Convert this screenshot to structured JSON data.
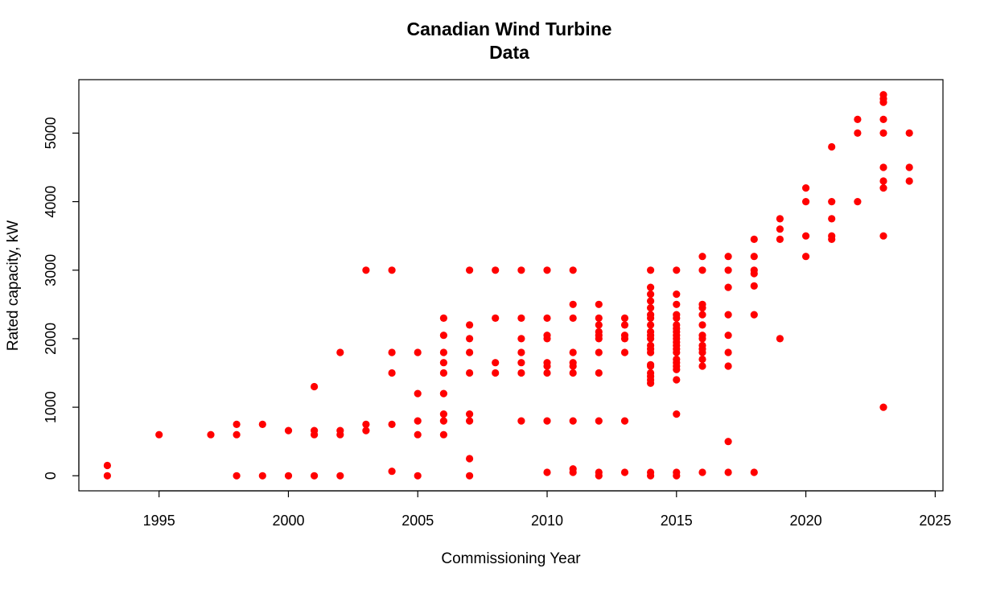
{
  "chart_data": {
    "type": "scatter",
    "title_lines": [
      "Canadian Wind Turbine",
      "Data"
    ],
    "xlabel": "Commissioning Year",
    "ylabel": "Rated capacity, kW",
    "xlim": [
      1991.9,
      2025.3
    ],
    "ylim": [
      -220,
      5780
    ],
    "x_ticks": [
      1995,
      2000,
      2005,
      2010,
      2015,
      2020,
      2025
    ],
    "y_ticks": [
      0,
      1000,
      2000,
      3000,
      4000,
      5000
    ],
    "grid": false,
    "legend": "none",
    "marker_color": "#ff0000",
    "points": [
      [
        1993,
        150
      ],
      [
        1993,
        0
      ],
      [
        1995,
        600
      ],
      [
        1997,
        600
      ],
      [
        1998,
        750
      ],
      [
        1998,
        600
      ],
      [
        1998,
        0
      ],
      [
        1999,
        750
      ],
      [
        1999,
        0
      ],
      [
        2000,
        660
      ],
      [
        2000,
        0
      ],
      [
        2001,
        1300
      ],
      [
        2001,
        660
      ],
      [
        2001,
        600
      ],
      [
        2001,
        0
      ],
      [
        2002,
        1800
      ],
      [
        2002,
        660
      ],
      [
        2002,
        600
      ],
      [
        2002,
        0
      ],
      [
        2003,
        3000
      ],
      [
        2003,
        750
      ],
      [
        2003,
        660
      ],
      [
        2004,
        3000
      ],
      [
        2004,
        1800
      ],
      [
        2004,
        1500
      ],
      [
        2004,
        750
      ],
      [
        2004,
        65
      ],
      [
        2005,
        1800
      ],
      [
        2005,
        1200
      ],
      [
        2005,
        800
      ],
      [
        2005,
        600
      ],
      [
        2005,
        0
      ],
      [
        2006,
        2300
      ],
      [
        2006,
        2050
      ],
      [
        2006,
        1800
      ],
      [
        2006,
        1650
      ],
      [
        2006,
        1500
      ],
      [
        2006,
        1200
      ],
      [
        2006,
        900
      ],
      [
        2006,
        800
      ],
      [
        2006,
        600
      ],
      [
        2007,
        3000
      ],
      [
        2007,
        2200
      ],
      [
        2007,
        2000
      ],
      [
        2007,
        1800
      ],
      [
        2007,
        1500
      ],
      [
        2007,
        900
      ],
      [
        2007,
        800
      ],
      [
        2007,
        250
      ],
      [
        2007,
        0
      ],
      [
        2008,
        3000
      ],
      [
        2008,
        2300
      ],
      [
        2008,
        1650
      ],
      [
        2008,
        1500
      ],
      [
        2009,
        3000
      ],
      [
        2009,
        2300
      ],
      [
        2009,
        2000
      ],
      [
        2009,
        1800
      ],
      [
        2009,
        1650
      ],
      [
        2009,
        1500
      ],
      [
        2009,
        800
      ],
      [
        2010,
        3000
      ],
      [
        2010,
        2300
      ],
      [
        2010,
        2050
      ],
      [
        2010,
        2000
      ],
      [
        2010,
        1650
      ],
      [
        2010,
        1600
      ],
      [
        2010,
        1500
      ],
      [
        2010,
        800
      ],
      [
        2010,
        50
      ],
      [
        2011,
        3000
      ],
      [
        2011,
        2500
      ],
      [
        2011,
        2300
      ],
      [
        2011,
        1800
      ],
      [
        2011,
        1650
      ],
      [
        2011,
        1600
      ],
      [
        2011,
        1500
      ],
      [
        2011,
        800
      ],
      [
        2011,
        100
      ],
      [
        2011,
        50
      ],
      [
        2012,
        2500
      ],
      [
        2012,
        2300
      ],
      [
        2012,
        2200
      ],
      [
        2012,
        2100
      ],
      [
        2012,
        2050
      ],
      [
        2012,
        2000
      ],
      [
        2012,
        1800
      ],
      [
        2012,
        1500
      ],
      [
        2012,
        800
      ],
      [
        2012,
        50
      ],
      [
        2012,
        0
      ],
      [
        2013,
        2300
      ],
      [
        2013,
        2200
      ],
      [
        2013,
        2050
      ],
      [
        2013,
        2000
      ],
      [
        2013,
        1800
      ],
      [
        2013,
        800
      ],
      [
        2013,
        50
      ],
      [
        2014,
        3000
      ],
      [
        2014,
        2750
      ],
      [
        2014,
        2650
      ],
      [
        2014,
        2550
      ],
      [
        2014,
        2450
      ],
      [
        2014,
        2350
      ],
      [
        2014,
        2300
      ],
      [
        2014,
        2200
      ],
      [
        2014,
        2100
      ],
      [
        2014,
        2050
      ],
      [
        2014,
        2000
      ],
      [
        2014,
        1900
      ],
      [
        2014,
        1850
      ],
      [
        2014,
        1800
      ],
      [
        2014,
        1620
      ],
      [
        2014,
        1600
      ],
      [
        2014,
        1500
      ],
      [
        2014,
        1450
      ],
      [
        2014,
        1400
      ],
      [
        2014,
        1350
      ],
      [
        2014,
        50
      ],
      [
        2014,
        0
      ],
      [
        2015,
        3000
      ],
      [
        2015,
        2650
      ],
      [
        2015,
        2500
      ],
      [
        2015,
        2350
      ],
      [
        2015,
        2300
      ],
      [
        2015,
        2200
      ],
      [
        2015,
        2150
      ],
      [
        2015,
        2100
      ],
      [
        2015,
        2050
      ],
      [
        2015,
        2000
      ],
      [
        2015,
        1950
      ],
      [
        2015,
        1900
      ],
      [
        2015,
        1850
      ],
      [
        2015,
        1800
      ],
      [
        2015,
        1700
      ],
      [
        2015,
        1650
      ],
      [
        2015,
        1600
      ],
      [
        2015,
        1550
      ],
      [
        2015,
        1400
      ],
      [
        2015,
        900
      ],
      [
        2015,
        50
      ],
      [
        2015,
        0
      ],
      [
        2016,
        3200
      ],
      [
        2016,
        3000
      ],
      [
        2016,
        2500
      ],
      [
        2016,
        2450
      ],
      [
        2016,
        2350
      ],
      [
        2016,
        2200
      ],
      [
        2016,
        2050
      ],
      [
        2016,
        2000
      ],
      [
        2016,
        1900
      ],
      [
        2016,
        1850
      ],
      [
        2016,
        1800
      ],
      [
        2016,
        1700
      ],
      [
        2016,
        1600
      ],
      [
        2016,
        50
      ],
      [
        2017,
        3200
      ],
      [
        2017,
        3000
      ],
      [
        2017,
        2750
      ],
      [
        2017,
        2350
      ],
      [
        2017,
        2050
      ],
      [
        2017,
        1800
      ],
      [
        2017,
        1600
      ],
      [
        2017,
        500
      ],
      [
        2017,
        50
      ],
      [
        2018,
        3450
      ],
      [
        2018,
        3200
      ],
      [
        2018,
        3000
      ],
      [
        2018,
        2950
      ],
      [
        2018,
        2770
      ],
      [
        2018,
        2350
      ],
      [
        2018,
        50
      ],
      [
        2019,
        3750
      ],
      [
        2019,
        3600
      ],
      [
        2019,
        3450
      ],
      [
        2019,
        2000
      ],
      [
        2020,
        4200
      ],
      [
        2020,
        4000
      ],
      [
        2020,
        3500
      ],
      [
        2020,
        3200
      ],
      [
        2021,
        4800
      ],
      [
        2021,
        4000
      ],
      [
        2021,
        3750
      ],
      [
        2021,
        3500
      ],
      [
        2021,
        3450
      ],
      [
        2022,
        5200
      ],
      [
        2022,
        5000
      ],
      [
        2022,
        4000
      ],
      [
        2023,
        5560
      ],
      [
        2023,
        5500
      ],
      [
        2023,
        5450
      ],
      [
        2023,
        5200
      ],
      [
        2023,
        5000
      ],
      [
        2023,
        4500
      ],
      [
        2023,
        4300
      ],
      [
        2023,
        4200
      ],
      [
        2023,
        3500
      ],
      [
        2023,
        1000
      ],
      [
        2024,
        5000
      ],
      [
        2024,
        4500
      ],
      [
        2024,
        4300
      ]
    ]
  }
}
